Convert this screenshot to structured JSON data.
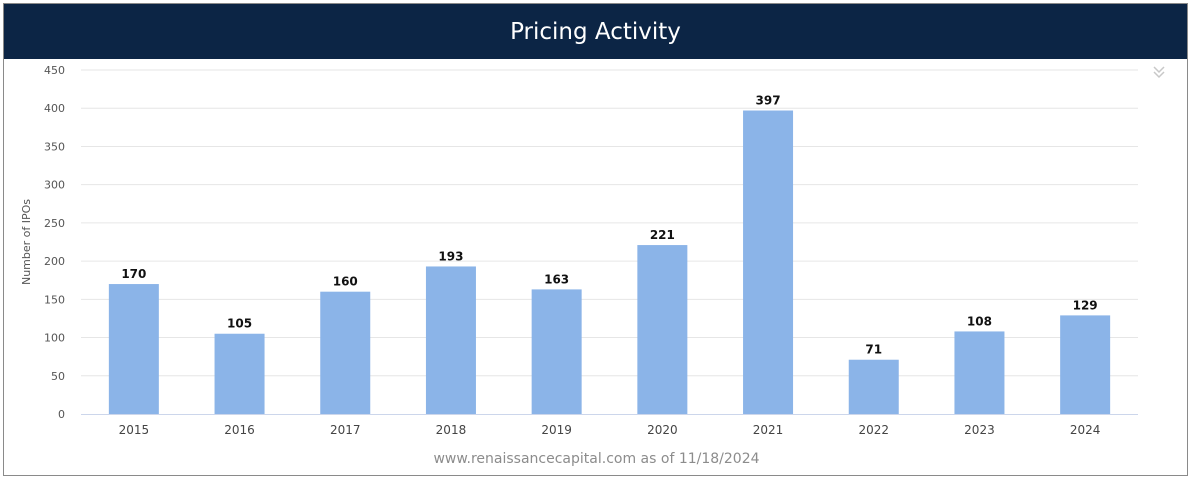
{
  "header": {
    "title": "Pricing Activity"
  },
  "footer": {
    "source": "www.renaissancecapital.com as of 11/18/2024"
  },
  "colors": {
    "header_bg": "#0c2545",
    "bar": "#8bb4e8",
    "grid": "#e6e6e6"
  },
  "icons": {
    "menu": "double-chevron-down-icon"
  },
  "chart_data": {
    "type": "bar",
    "title": "Pricing Activity",
    "xlabel": "",
    "ylabel": "Number of IPOs",
    "categories": [
      "2015",
      "2016",
      "2017",
      "2018",
      "2019",
      "2020",
      "2021",
      "2022",
      "2023",
      "2024"
    ],
    "values": [
      170,
      105,
      160,
      193,
      163,
      221,
      397,
      71,
      108,
      129
    ],
    "ylim": [
      0,
      450
    ],
    "yticks": [
      0,
      50,
      100,
      150,
      200,
      250,
      300,
      350,
      400,
      450
    ],
    "grid": true,
    "data_labels": true
  }
}
